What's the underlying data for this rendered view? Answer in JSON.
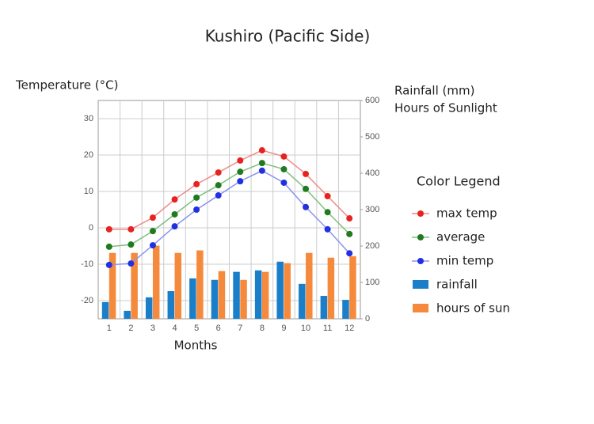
{
  "chart_data": {
    "type": "combo",
    "title": "Kushiro (Pacific Side)",
    "y_label": "Temperature (°C)",
    "y2_label": [
      "Rainfall (mm)",
      "Hours of Sunlight"
    ],
    "x_label": "Months",
    "legend_title": "Color Legend",
    "legend": "right",
    "grid": true,
    "categories": [
      "1",
      "2",
      "3",
      "4",
      "5",
      "6",
      "7",
      "8",
      "9",
      "10",
      "11",
      "12"
    ],
    "ylim": [
      -25,
      35
    ],
    "yticks": [
      -20,
      -10,
      0,
      10,
      20,
      30
    ],
    "y2lim": [
      0,
      600
    ],
    "y2ticks": [
      0,
      100,
      200,
      300,
      400,
      500,
      600
    ],
    "series": [
      {
        "name": "max temp",
        "type": "line",
        "color": "#e8231f",
        "line_color": "#f08a8a",
        "values": [
          -0.4,
          -0.4,
          2.8,
          7.8,
          12,
          15.2,
          18.5,
          21.3,
          19.6,
          14.8,
          8.7,
          2.6
        ]
      },
      {
        "name": "average",
        "type": "line",
        "color": "#1e7b1e",
        "line_color": "#7fbf7f",
        "values": [
          -5.2,
          -4.6,
          -0.9,
          3.7,
          8.3,
          11.7,
          15.4,
          17.8,
          16.1,
          10.7,
          4.3,
          -1.7
        ]
      },
      {
        "name": "min temp",
        "type": "line",
        "color": "#2130e0",
        "line_color": "#8a93f0",
        "values": [
          -10.2,
          -9.8,
          -4.8,
          0.4,
          5,
          8.9,
          12.8,
          15.7,
          12.4,
          5.7,
          -0.4,
          -7
        ]
      },
      {
        "name": "rainfall",
        "type": "bar",
        "axis": "y2",
        "color": "#1a7fc8",
        "values": [
          46,
          22,
          59,
          76,
          111,
          107,
          129,
          133,
          157,
          96,
          63,
          52
        ]
      },
      {
        "name": "hours of sun",
        "type": "bar",
        "axis": "y2",
        "color": "#f58a3c",
        "values": [
          181,
          181,
          201,
          181,
          188,
          131,
          107,
          129,
          153,
          181,
          168,
          172
        ]
      }
    ]
  }
}
